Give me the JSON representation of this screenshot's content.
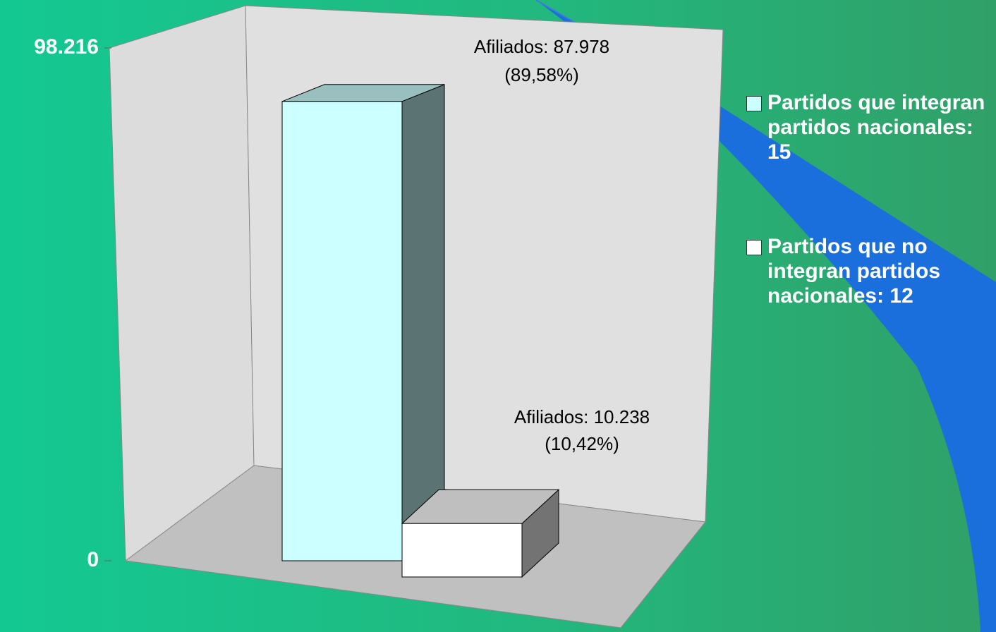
{
  "chart_data": {
    "type": "bar3d",
    "series": [
      {
        "name": "Partidos que integran partidos nacionales: 15",
        "color": "#ccffff",
        "values": [
          87978
        ],
        "value_labels": [
          [
            "Afiliados: 87.978",
            "(89,58%)"
          ]
        ]
      },
      {
        "name": "Partidos que no integran partidos nacionales: 12",
        "color": "#ffffff",
        "values": [
          10238
        ],
        "value_labels": [
          [
            "Afiliados: 10.238",
            "(10,42%)"
          ]
        ]
      }
    ],
    "ylim": [
      0,
      98216
    ],
    "yticks": [
      {
        "value": 0,
        "label": "0"
      },
      {
        "value": 98216,
        "label": "98.216"
      }
    ]
  }
}
